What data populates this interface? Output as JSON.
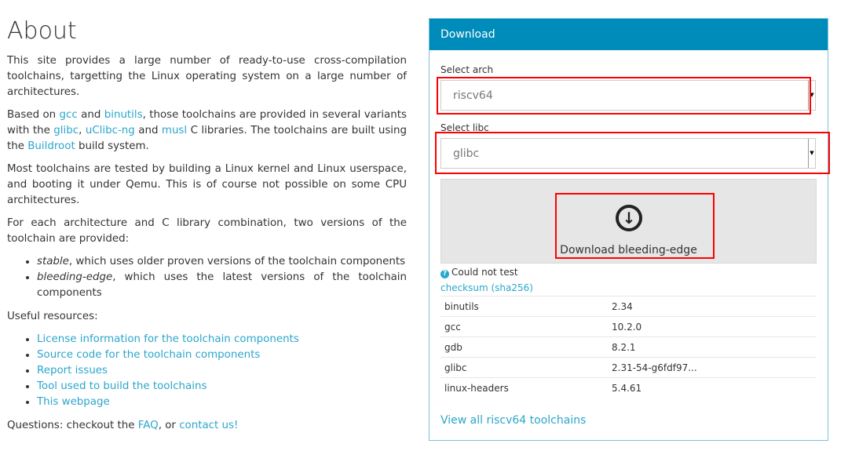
{
  "about": {
    "title": "About",
    "p1": "This site provides a large number of ready-to-use cross-compilation toolchains, targetting the Linux operating system on a large number of architectures.",
    "p2": {
      "t1": "Based on ",
      "gcc": "gcc",
      "t2": " and ",
      "binutils": "binutils",
      "t3": ", those toolchains are provided in several variants with the ",
      "glibc": "glibc",
      "t4": ", ",
      "uclibc": "uClibc-ng",
      "t5": " and ",
      "musl": "musl",
      "t6": " C libraries. The toolchains are built using the ",
      "buildroot": "Buildroot",
      "t7": " build system."
    },
    "p3": "Most toolchains are tested by building a Linux kernel and Linux userspace, and booting it under Qemu. This is of course not possible on some CPU architectures.",
    "p4": "For each architecture and C library combination, two versions of the toolchain are provided:",
    "variants": [
      {
        "name": "stable",
        "desc": ", which uses older proven versions of the toolchain components"
      },
      {
        "name": "bleeding-edge",
        "desc": ", which uses the latest versions of the toolchain components"
      }
    ],
    "resources_label": "Useful resources:",
    "resources": [
      "License information for the toolchain components",
      "Source code for the toolchain components",
      "Report issues",
      "Tool used to build the toolchains",
      "This webpage"
    ],
    "questions": {
      "t1": "Questions: checkout the ",
      "faq": "FAQ",
      "t2": ", or ",
      "contact": "contact us!"
    }
  },
  "download": {
    "header": "Download",
    "arch_label": "Select arch",
    "arch_value": "riscv64",
    "libc_label": "Select libc",
    "libc_value": "glibc",
    "button": "Download bleeding-edge",
    "button_icon": "download-circle-icon",
    "status": "Could not test",
    "checksum": "checksum (sha256)",
    "packages": [
      {
        "name": "binutils",
        "version": "2.34"
      },
      {
        "name": "gcc",
        "version": "10.2.0"
      },
      {
        "name": "gdb",
        "version": "8.2.1"
      },
      {
        "name": "glibc",
        "version": "2.31-54-g6fdf97..."
      },
      {
        "name": "linux-headers",
        "version": "5.4.61"
      }
    ],
    "view_all": "View all riscv64 toolchains"
  },
  "colors": {
    "accent": "#008cba",
    "link": "#2ba6cb",
    "highlight": "#ff0000"
  }
}
